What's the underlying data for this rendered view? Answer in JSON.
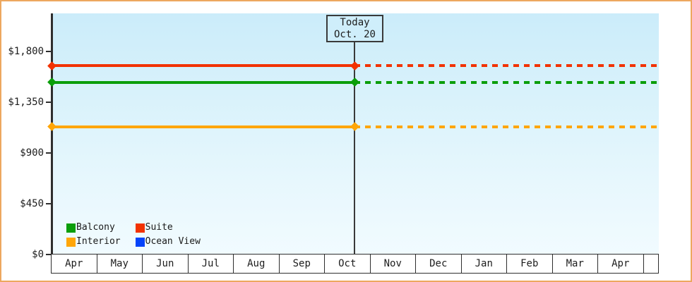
{
  "frame": {
    "border_color": "#eda85f",
    "background": "#ffffff"
  },
  "chart_data": {
    "type": "line",
    "title": "",
    "x_categories": [
      "Apr",
      "May",
      "Jun",
      "Jul",
      "Aug",
      "Sep",
      "Oct",
      "Nov",
      "Dec",
      "Jan",
      "Feb",
      "Mar",
      "Apr"
    ],
    "today_annotation": {
      "line1": "Today",
      "line2": "Oct. 20",
      "month": "Oct",
      "day": 20
    },
    "y_ticks": [
      {
        "value": 1800,
        "label": "$1,800"
      },
      {
        "value": 1350,
        "label": "$1,350"
      },
      {
        "value": 900,
        "label": "$900"
      },
      {
        "value": 450,
        "label": "$450"
      },
      {
        "value": 0,
        "label": "$0"
      }
    ],
    "ylim": [
      0,
      2140
    ],
    "grid": false,
    "legend_position": "bottom-left",
    "plot_bg_gradient": [
      "#cbecfa",
      "#f1fbff"
    ],
    "series": [
      {
        "name": "Balcony",
        "color": "#0a9e0a",
        "value": 1525,
        "visible": true,
        "history_style": "solid",
        "projection_style": "dashed"
      },
      {
        "name": "Suite",
        "color": "#f23200",
        "value": 1670,
        "visible": true,
        "history_style": "solid",
        "projection_style": "dashed"
      },
      {
        "name": "Interior",
        "color": "#ffa608",
        "value": 1130,
        "visible": true,
        "history_style": "solid",
        "projection_style": "dashed"
      },
      {
        "name": "Ocean View",
        "color": "#0443fa",
        "value": null,
        "visible": false,
        "history_style": "solid",
        "projection_style": "dashed"
      }
    ]
  }
}
